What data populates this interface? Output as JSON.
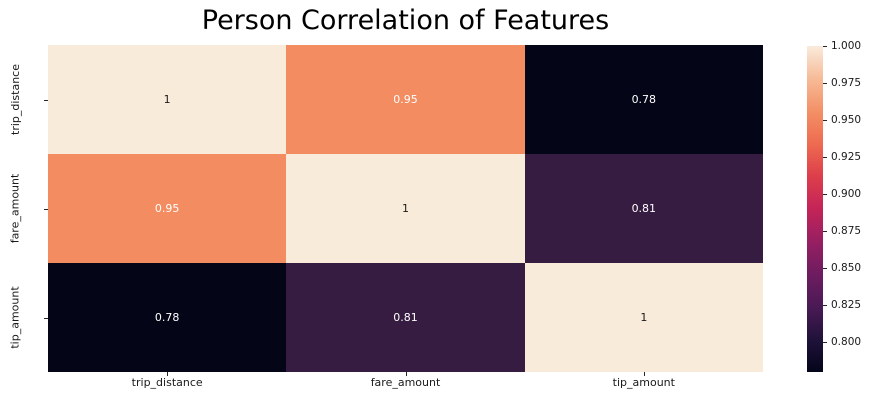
{
  "colors": {
    "background": "#ffffff",
    "title_text": "#000000",
    "tick_label_text": "#1a1a1a",
    "tick_mark": "#262626"
  },
  "chart_data": {
    "type": "heatmap",
    "title": "Person Correlation of Features",
    "x_categories": [
      "trip_distance",
      "fare_amount",
      "tip_amount"
    ],
    "y_categories": [
      "trip_distance",
      "fare_amount",
      "tip_amount"
    ],
    "matrix": [
      [
        1.0,
        0.95,
        0.78
      ],
      [
        0.95,
        1.0,
        0.81
      ],
      [
        0.78,
        0.81,
        1.0
      ]
    ],
    "value_labels": [
      [
        "1",
        "0.95",
        "0.78"
      ],
      [
        "0.95",
        "1",
        "0.81"
      ],
      [
        "0.78",
        "0.81",
        "1"
      ]
    ],
    "cell_colors": [
      [
        "#f9ebda",
        "#f38c61",
        "#040617"
      ],
      [
        "#f38c61",
        "#f9ebda",
        "#371c41"
      ],
      [
        "#040617",
        "#371c41",
        "#f9ebda"
      ]
    ],
    "value_text_colors": [
      [
        "#1a1a1a",
        "#ffffff",
        "#ffffff"
      ],
      [
        "#ffffff",
        "#1a1a1a",
        "#ffffff"
      ],
      [
        "#ffffff",
        "#ffffff",
        "#1a1a1a"
      ]
    ],
    "grid": false,
    "colorbar": {
      "position": "right",
      "vmin": 0.78,
      "vmax": 1.0,
      "tick_values": [
        1.0,
        0.975,
        0.95,
        0.925,
        0.9,
        0.875,
        0.85,
        0.825,
        0.8
      ],
      "tick_labels": [
        "1.000",
        "0.975",
        "0.950",
        "0.925",
        "0.900",
        "0.875",
        "0.850",
        "0.825",
        "0.800"
      ],
      "gradient_stops": [
        {
          "pos": 0.0,
          "color": "#04051a"
        },
        {
          "pos": 0.1,
          "color": "#20123a"
        },
        {
          "pos": 0.2,
          "color": "#4a1a55"
        },
        {
          "pos": 0.3,
          "color": "#6e1c60"
        },
        {
          "pos": 0.4,
          "color": "#971f62"
        },
        {
          "pos": 0.5,
          "color": "#c42458"
        },
        {
          "pos": 0.6,
          "color": "#dd3e4b"
        },
        {
          "pos": 0.7,
          "color": "#ee6b50"
        },
        {
          "pos": 0.8,
          "color": "#f39066"
        },
        {
          "pos": 0.9,
          "color": "#f6bb97"
        },
        {
          "pos": 1.0,
          "color": "#faebdc"
        }
      ]
    }
  }
}
